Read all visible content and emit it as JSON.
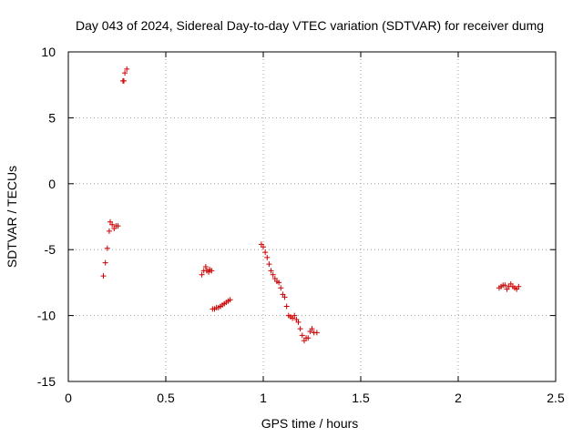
{
  "chart_data": {
    "type": "scatter",
    "title": "Day 043 of 2024, Sidereal Day-to-day VTEC variation (SDTVAR) for receiver dumg",
    "xlabel": "GPS time / hours",
    "ylabel": "SDTVAR / TECUs",
    "xlim": [
      0,
      2.5
    ],
    "ylim": [
      -15,
      10
    ],
    "x_ticks": [
      0,
      0.5,
      1,
      1.5,
      2,
      2.5
    ],
    "x_tick_labels": [
      "0",
      "0.5",
      "1",
      "1.5",
      "2",
      "2.5"
    ],
    "y_ticks": [
      -15,
      -10,
      -5,
      0,
      5,
      10
    ],
    "y_tick_labels": [
      "-15",
      "-10",
      "-5",
      "0",
      "5",
      "10"
    ],
    "grid": true,
    "marker": "+",
    "color": "#cc0000",
    "series": [
      {
        "name": "SDTVAR",
        "points": [
          [
            0.18,
            -7.0
          ],
          [
            0.19,
            -6.0
          ],
          [
            0.2,
            -4.9
          ],
          [
            0.21,
            -3.6
          ],
          [
            0.215,
            -2.9
          ],
          [
            0.225,
            -3.1
          ],
          [
            0.235,
            -3.4
          ],
          [
            0.245,
            -3.2
          ],
          [
            0.255,
            -3.2
          ],
          [
            0.28,
            7.8
          ],
          [
            0.285,
            7.8
          ],
          [
            0.29,
            8.4
          ],
          [
            0.3,
            8.7
          ],
          [
            0.685,
            -6.9
          ],
          [
            0.695,
            -6.6
          ],
          [
            0.705,
            -6.3
          ],
          [
            0.71,
            -6.6
          ],
          [
            0.72,
            -6.7
          ],
          [
            0.725,
            -6.5
          ],
          [
            0.735,
            -6.6
          ],
          [
            0.74,
            -9.5
          ],
          [
            0.75,
            -9.5
          ],
          [
            0.76,
            -9.4
          ],
          [
            0.77,
            -9.4
          ],
          [
            0.78,
            -9.3
          ],
          [
            0.79,
            -9.2
          ],
          [
            0.8,
            -9.1
          ],
          [
            0.81,
            -9.0
          ],
          [
            0.82,
            -8.9
          ],
          [
            0.83,
            -8.8
          ],
          [
            0.99,
            -4.6
          ],
          [
            1.0,
            -4.8
          ],
          [
            1.01,
            -5.2
          ],
          [
            1.02,
            -5.6
          ],
          [
            1.03,
            -6.1
          ],
          [
            1.04,
            -6.6
          ],
          [
            1.05,
            -6.9
          ],
          [
            1.06,
            -7.2
          ],
          [
            1.07,
            -7.4
          ],
          [
            1.08,
            -7.5
          ],
          [
            1.09,
            -7.9
          ],
          [
            1.1,
            -8.4
          ],
          [
            1.11,
            -8.6
          ],
          [
            1.12,
            -9.3
          ],
          [
            1.13,
            -10.0
          ],
          [
            1.14,
            -10.1
          ],
          [
            1.15,
            -10.2
          ],
          [
            1.16,
            -10.0
          ],
          [
            1.17,
            -10.3
          ],
          [
            1.18,
            -10.5
          ],
          [
            1.19,
            -11.0
          ],
          [
            1.2,
            -11.5
          ],
          [
            1.21,
            -11.9
          ],
          [
            1.22,
            -11.7
          ],
          [
            1.23,
            -11.7
          ],
          [
            1.24,
            -11.2
          ],
          [
            1.25,
            -11.0
          ],
          [
            1.26,
            -11.3
          ],
          [
            1.275,
            -11.3
          ],
          [
            2.21,
            -7.9
          ],
          [
            2.22,
            -7.8
          ],
          [
            2.23,
            -7.7
          ],
          [
            2.24,
            -7.7
          ],
          [
            2.25,
            -8.0
          ],
          [
            2.26,
            -7.8
          ],
          [
            2.27,
            -7.6
          ],
          [
            2.28,
            -7.8
          ],
          [
            2.29,
            -7.9
          ],
          [
            2.3,
            -8.0
          ],
          [
            2.31,
            -7.8
          ]
        ]
      }
    ]
  }
}
